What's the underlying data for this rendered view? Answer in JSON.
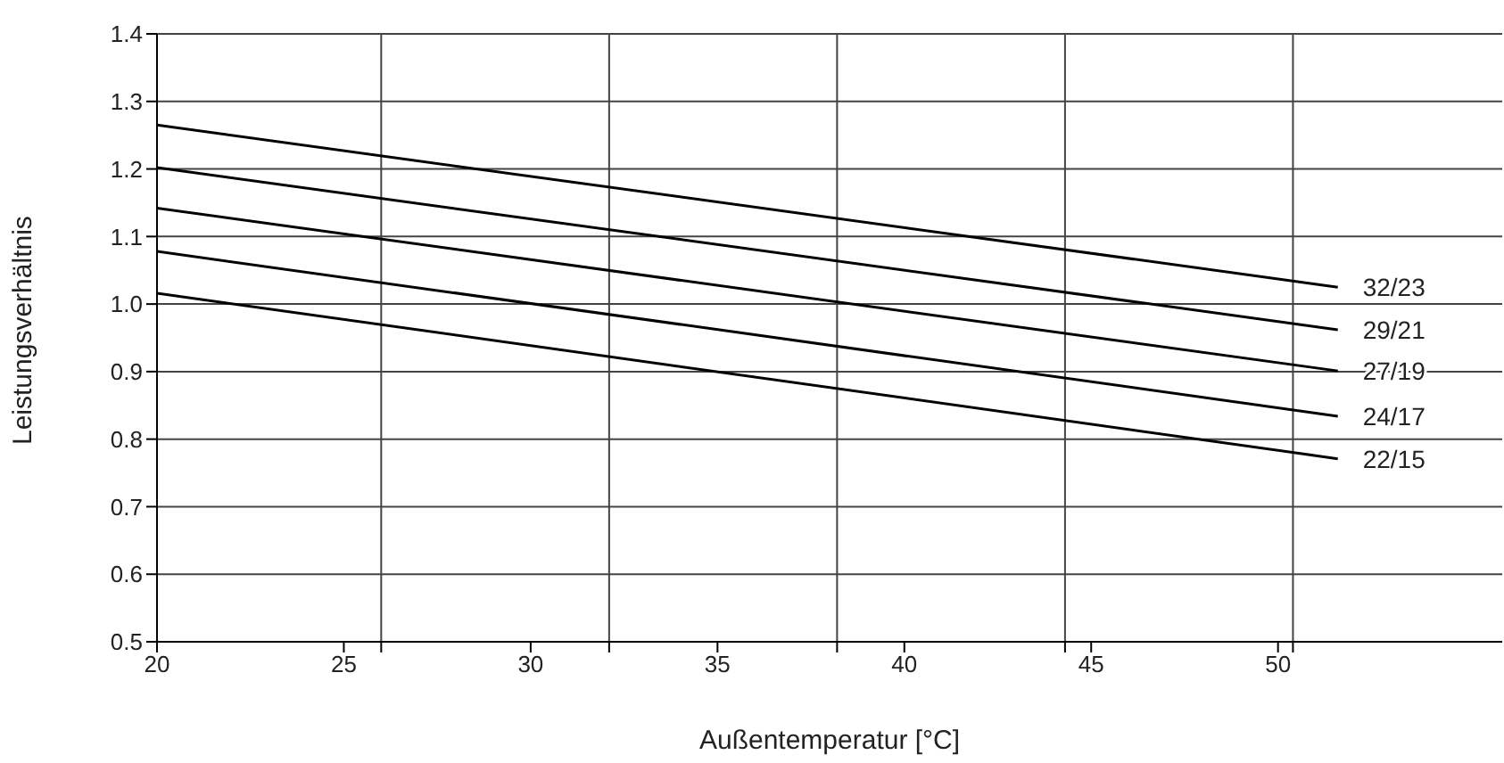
{
  "chart_data": {
    "type": "line",
    "xlabel": "Außentemperatur [°C]",
    "ylabel": "Leistungsverhältnis",
    "x": [
      20,
      51.6
    ],
    "series": [
      {
        "name": "32/23",
        "color": "#000000",
        "values": [
          1.265,
          1.025
        ]
      },
      {
        "name": "29/21",
        "color": "#000000",
        "values": [
          1.202,
          0.962
        ]
      },
      {
        "name": "27/19",
        "color": "#000000",
        "values": [
          1.142,
          0.901
        ]
      },
      {
        "name": "24/17",
        "color": "#000000",
        "values": [
          1.078,
          0.834
        ]
      },
      {
        "name": "22/15",
        "color": "#000000",
        "values": [
          1.016,
          0.771
        ]
      }
    ],
    "xlim": [
      20,
      56
    ],
    "xticks": [
      20,
      25,
      30,
      35,
      40,
      45,
      50,
      {
        "value": 26.0,
        "label": null
      },
      {
        "value": 32.1,
        "label": null
      },
      {
        "value": 38.2,
        "label": null
      },
      {
        "value": 44.3,
        "label": null
      },
      {
        "value": 50.4,
        "label": null
      }
    ],
    "ylim": [
      0.5,
      1.4
    ],
    "yticks": [
      {
        "value": 0.5,
        "label": "0.5"
      },
      {
        "value": 0.6,
        "label": "0.6"
      },
      {
        "value": 0.7,
        "label": "0.7"
      },
      {
        "value": 0.8,
        "label": "0.8"
      },
      {
        "value": 0.9,
        "label": "0.9"
      },
      {
        "value": 1.0,
        "label": "1.0"
      },
      {
        "value": 1.1,
        "label": "1.1"
      },
      {
        "value": 1.2,
        "label": "1.2"
      },
      {
        "value": 1.3,
        "label": "1.3"
      },
      {
        "value": 1.4,
        "label": "1.4"
      }
    ],
    "grid": true,
    "legend": false,
    "marker": "none",
    "line_style": "solid"
  }
}
